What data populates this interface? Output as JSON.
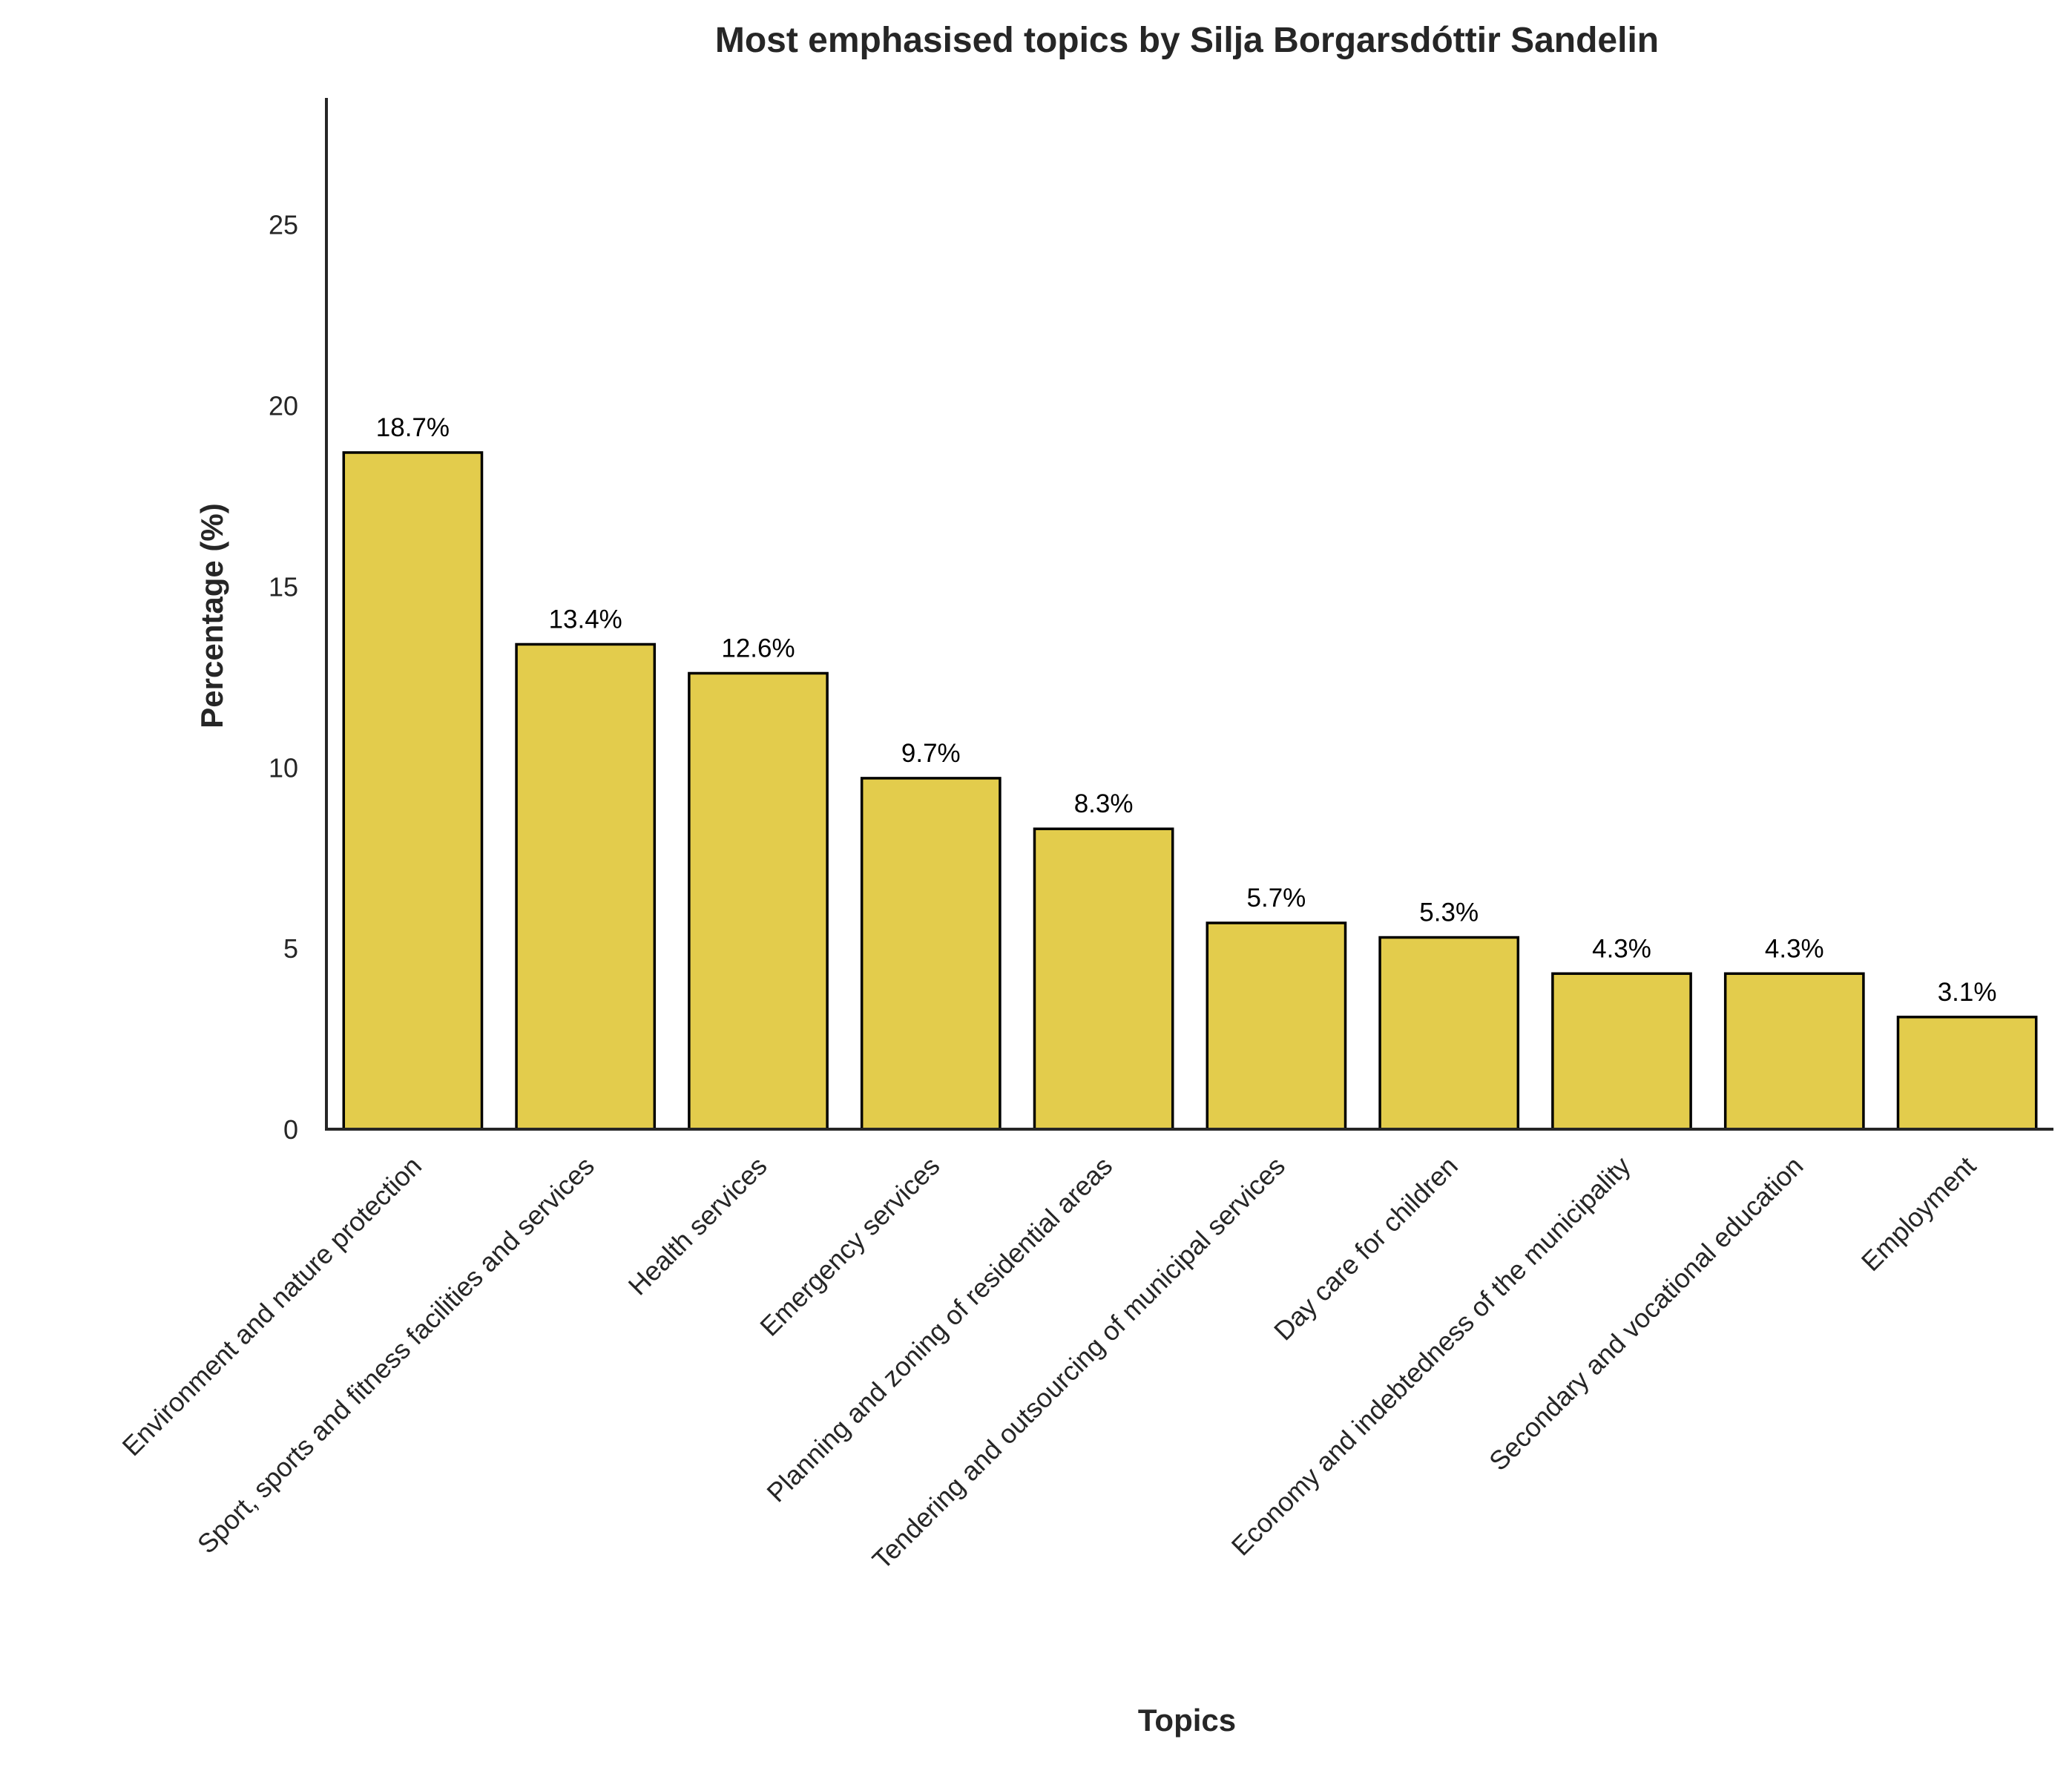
{
  "chart_data": {
    "type": "bar",
    "title": "Most emphasised topics by Silja Borgarsdóttir Sandelin",
    "xlabel": "Topics",
    "ylabel": "Percentage (%)",
    "ylim": [
      0,
      28.5
    ],
    "yticks": [
      0,
      5,
      10,
      15,
      20,
      25
    ],
    "categories": [
      "Environment and nature protection",
      "Sport, sports and fitness facilities and services",
      "Health services",
      "Emergency services",
      "Planning and zoning of residential areas",
      "Tendering and outsourcing of municipal services",
      "Day care for children",
      "Economy and indebtedness of the municipality",
      "Secondary and vocational education",
      "Employment"
    ],
    "values": [
      18.7,
      13.4,
      12.6,
      9.7,
      8.3,
      5.7,
      5.3,
      4.3,
      4.3,
      3.1
    ],
    "data_labels": [
      "18.7%",
      "13.4%",
      "12.6%",
      "9.7%",
      "8.3%",
      "5.7%",
      "5.3%",
      "4.3%",
      "4.3%",
      "3.1%"
    ],
    "bar_color": "#e3cc4c",
    "edge_color": "#000000",
    "grid": false,
    "legend": "none"
  }
}
